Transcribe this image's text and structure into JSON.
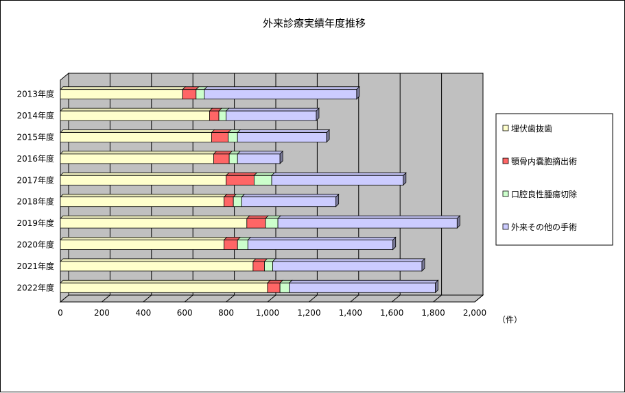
{
  "chart_data": {
    "type": "bar",
    "orientation": "horizontal",
    "stacked": true,
    "three_d": true,
    "title": "外来診療実績年度推移",
    "unit_label": "（件）",
    "categories": [
      "2013年度",
      "2014年度",
      "2015年度",
      "2016年度",
      "2017年度",
      "2018年度",
      "2019年度",
      "2020年度",
      "2021年度",
      "2022年度"
    ],
    "series": [
      {
        "name": "埋伏歯抜歯",
        "color": "#ffffcc",
        "values": [
          590,
          720,
          730,
          740,
          800,
          790,
          900,
          790,
          930,
          1000
        ]
      },
      {
        "name": "顎骨内嚢胞摘出術",
        "color": "#ff6666",
        "values": [
          65,
          45,
          80,
          75,
          135,
          45,
          90,
          65,
          55,
          60
        ]
      },
      {
        "name": "口腔良性腫瘍切除",
        "color": "#ccffcc",
        "values": [
          40,
          35,
          45,
          40,
          85,
          40,
          60,
          50,
          40,
          45
        ]
      },
      {
        "name": "外来その他の手術",
        "color": "#ccccff",
        "values": [
          735,
          435,
          430,
          205,
          635,
          455,
          865,
          700,
          720,
          705
        ]
      }
    ],
    "xlim": [
      0,
      2000
    ],
    "xticks": [
      "0",
      "200",
      "400",
      "600",
      "800",
      "1,000",
      "1,200",
      "1,400",
      "1,600",
      "1,800",
      "2,000"
    ],
    "grid": true,
    "legend_position": "right"
  }
}
